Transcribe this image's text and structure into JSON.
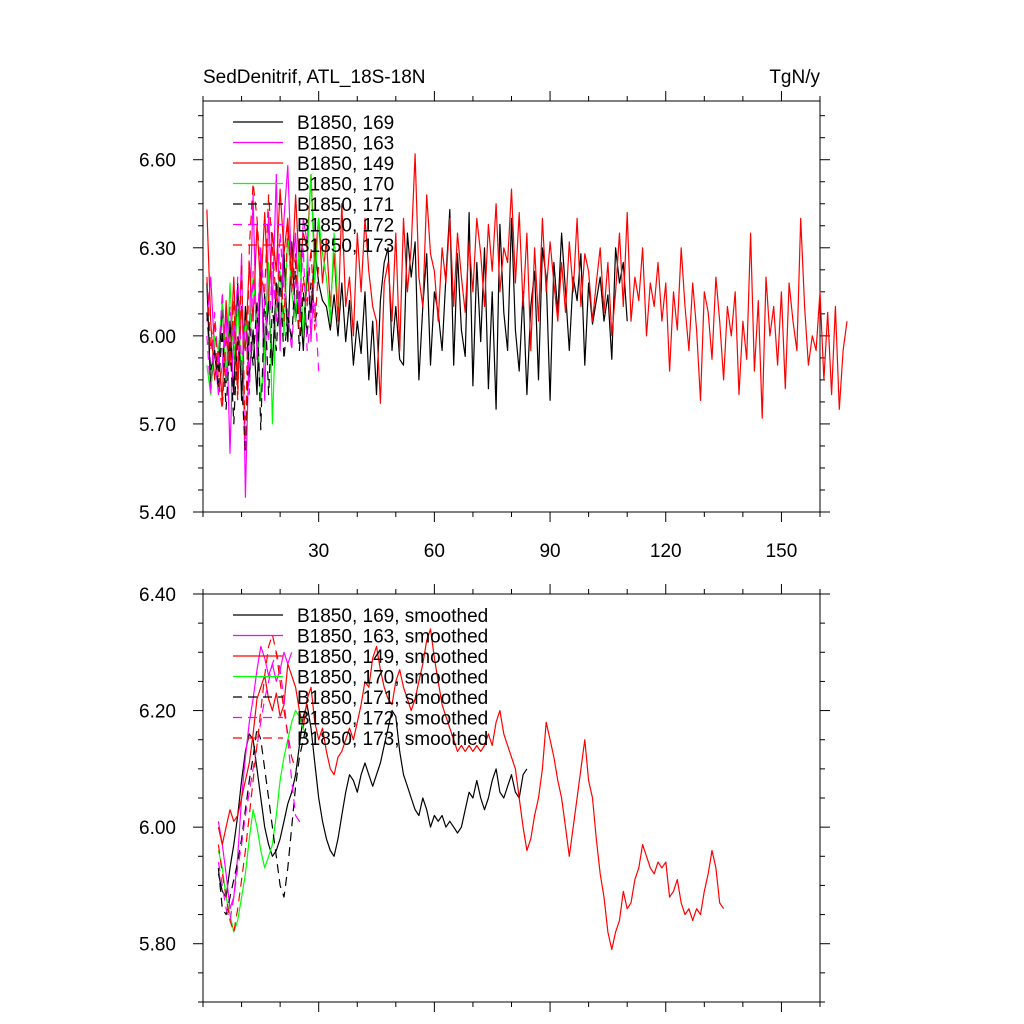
{
  "header": {
    "title": "SedDenitrif, ATL_18S-18N",
    "units": "TgN/y"
  },
  "colors": {
    "black": "#000000",
    "magenta": "#ff00ff",
    "red": "#ff0000",
    "green": "#00ff00"
  },
  "chart_data": [
    {
      "type": "line",
      "title": "SedDenitrif, ATL_18S-18N",
      "ylabel_right": "TgN/y",
      "xlim": [
        0,
        160
      ],
      "ylim": [
        5.4,
        6.8
      ],
      "xticks": [
        30,
        60,
        90,
        120,
        150
      ],
      "xtick_labels": [
        "30",
        "60",
        "90",
        "120",
        "150"
      ],
      "yticks": [
        5.4,
        5.7,
        6.0,
        6.3,
        6.6
      ],
      "ytick_labels": [
        "5.40",
        "5.70",
        "6.00",
        "6.30",
        "6.60"
      ],
      "legend_position": "top-left",
      "series": [
        {
          "name": "B1850, 169",
          "color": "#000000",
          "dash": false,
          "x_start": 1,
          "values": [
            6.18,
            5.82,
            5.95,
            5.88,
            6.1,
            5.84,
            6.05,
            5.8,
            6.18,
            5.78,
            6.1,
            5.86,
            6.02,
            5.8,
            6.22,
            5.95,
            6.12,
            5.9,
            6.18,
            6.0,
            6.28,
            5.98,
            6.32,
            6.05,
            6.15,
            5.95,
            6.22,
            6.08,
            6.3,
            6.18,
            6.12,
            6.1,
            6.02,
            6.14,
            6.0,
            6.18,
            5.98,
            6.12,
            5.9,
            6.05,
            5.94,
            6.15,
            5.85,
            6.05,
            5.8,
            6.12,
            6.25,
            6.3,
            5.95,
            6.1,
            5.92,
            5.9,
            6.35,
            6.2,
            6.32,
            5.85,
            6.1,
            6.28,
            5.9,
            6.15,
            6.08,
            5.95,
            6.2,
            6.43,
            5.9,
            6.28,
            6.02,
            5.93,
            6.42,
            5.83,
            6.25,
            5.98,
            6.3,
            5.82,
            6.15,
            5.75,
            6.38,
            6.08,
            5.95,
            6.4,
            6.02,
            5.88,
            6.15,
            5.8,
            6.1,
            6.22,
            5.85,
            6.3,
            6.2,
            5.78,
            6.25,
            6.08,
            6.35,
            6.15,
            5.95,
            6.2,
            6.12,
            6.28,
            5.9,
            6.18,
            6.04,
            6.12,
            6.2,
            6.05,
            6.14,
            5.92,
            6.3,
            6.18,
            6.25,
            6.05
          ]
        },
        {
          "name": "B1850, 163",
          "color": "#ff00ff",
          "dash": false,
          "x_start": 1,
          "values": [
            6.05,
            6.2,
            5.95,
            5.8,
            5.9,
            6.1,
            5.6,
            6.05,
            5.85,
            6.28,
            5.45,
            6.0,
            6.48,
            5.92,
            6.3,
            5.78,
            6.42,
            6.1,
            6.55,
            5.95,
            6.4,
            6.58,
            6.2,
            6.35,
            6.05,
            6.4,
            6.32,
            5.98,
            6.25,
            6.4
          ]
        },
        {
          "name": "B1850, 149",
          "color": "#ff0000",
          "dash": false,
          "x_start": 1,
          "values": [
            6.43,
            6.05,
            5.85,
            5.95,
            5.78,
            6.12,
            5.9,
            6.2,
            5.82,
            6.1,
            5.95,
            6.25,
            6.05,
            6.38,
            6.15,
            6.42,
            6.12,
            6.35,
            6.22,
            6.5,
            6.28,
            6.4,
            6.18,
            6.48,
            6.22,
            6.35,
            6.3,
            6.55,
            6.25,
            6.4,
            6.18,
            6.33,
            6.1,
            6.28,
            6.05,
            6.45,
            6.1,
            6.2,
            6.0,
            6.35,
            6.15,
            6.4,
            6.22,
            6.1,
            6.05,
            5.77,
            6.18,
            6.25,
            6.05,
            6.35,
            5.95,
            6.4,
            6.15,
            6.3,
            6.62,
            6.2,
            6.1,
            6.48,
            6.28,
            6.22,
            6.05,
            6.3,
            6.18,
            6.4,
            6.1,
            6.35,
            6.2,
            6.08,
            6.32,
            6.15,
            6.4,
            6.28,
            6.1,
            6.38,
            6.22,
            6.45,
            6.15,
            6.3,
            6.25,
            6.5,
            6.18,
            6.42,
            6.1,
            6.35,
            5.95,
            6.3,
            6.05,
            6.4,
            6.15,
            6.32,
            6.18,
            6.05,
            6.25,
            6.08,
            6.32,
            6.15,
            6.4,
            6.1,
            6.28,
            6.22,
            6.05,
            6.18,
            6.3,
            6.08,
            6.25,
            6.0,
            6.15,
            6.35,
            6.1,
            6.42,
            6.05,
            6.2,
            6.12,
            6.3,
            6.0,
            6.18,
            6.1,
            6.25,
            6.05,
            6.18,
            5.88,
            6.15,
            6.02,
            6.3,
            6.1,
            5.95,
            6.18,
            6.02,
            5.78,
            6.15,
            6.08,
            5.92,
            6.2,
            6.05,
            5.85,
            6.1,
            6.0,
            6.15,
            5.8,
            6.05,
            5.92,
            6.35,
            5.88,
            6.12,
            5.72,
            6.2,
            6.0,
            6.1,
            5.9,
            6.15,
            5.82,
            6.18,
            6.05,
            5.95,
            6.4,
            6.1,
            5.9,
            6.0,
            5.95,
            6.15,
            5.85,
            6.08,
            5.8,
            6.1,
            5.75,
            5.95,
            6.05
          ]
        },
        {
          "name": "B1850, 170",
          "color": "#00ff00",
          "dash": false,
          "x_start": 1,
          "values": [
            5.9,
            5.8,
            6.0,
            5.95,
            6.12,
            5.85,
            6.18,
            5.92,
            6.1,
            5.88,
            6.05,
            5.98,
            6.2,
            6.05,
            5.78,
            5.95,
            6.25,
            5.7,
            6.1,
            6.22,
            6.0,
            6.35,
            6.15,
            6.05,
            6.32,
            6.0,
            6.25,
            6.55,
            6.18,
            6.4,
            6.28,
            6.2,
            6.05,
            6.35,
            6.1
          ]
        },
        {
          "name": "B1850, 171",
          "color": "#000000",
          "dash": true,
          "x_start": 1,
          "values": [
            6.08,
            5.88,
            5.95,
            5.82,
            6.02,
            5.75,
            5.98,
            5.7,
            6.0,
            5.85,
            5.6,
            6.05,
            5.9,
            6.12,
            5.68,
            6.15,
            5.8,
            6.1,
            5.95,
            6.2,
            5.92,
            6.08,
            5.98,
            6.25,
            5.95,
            6.15,
            6.0,
            6.18,
            6.05,
            6.1
          ]
        },
        {
          "name": "B1850, 172",
          "color": "#ff00ff",
          "dash": true,
          "x_start": 1,
          "values": [
            6.0,
            5.8,
            6.08,
            5.9,
            6.15,
            5.85,
            6.1,
            5.95,
            6.2,
            5.9,
            6.05,
            5.8,
            6.22,
            6.0,
            6.3,
            6.1,
            5.98,
            6.25,
            6.05,
            6.35,
            6.15,
            6.08,
            5.95,
            6.2,
            6.1,
            6.3,
            5.95,
            6.05,
            6.12,
            5.88
          ]
        },
        {
          "name": "B1850, 173",
          "color": "#ff0000",
          "dash": true,
          "x_start": 1,
          "values": [
            6.2,
            5.95,
            6.05,
            5.85,
            5.75,
            6.0,
            5.9,
            6.12,
            5.78,
            6.25,
            5.62,
            6.3,
            6.52,
            6.4,
            6.2,
            6.15,
            6.48,
            6.3,
            6.12,
            6.25,
            6.05,
            6.38,
            6.15,
            6.28,
            6.0,
            6.2,
            6.1,
            6.3,
            6.02,
            6.25
          ]
        }
      ]
    },
    {
      "type": "line",
      "title": "",
      "xlim": [
        0,
        160
      ],
      "ylim": [
        5.7,
        6.4
      ],
      "xticks": [
        30,
        60,
        90,
        120,
        150
      ],
      "xtick_labels": [],
      "yticks": [
        5.8,
        6.0,
        6.2,
        6.4
      ],
      "ytick_labels": [
        "5.80",
        "6.00",
        "6.20",
        "6.40"
      ],
      "legend_position": "top-left",
      "series": [
        {
          "name": "B1850, 169, smoothed",
          "color": "#000000",
          "dash": false,
          "x_start": 4,
          "values": [
            5.92,
            5.89,
            5.88,
            5.93,
            5.97,
            6.02,
            6.08,
            6.13,
            6.16,
            6.15,
            6.1,
            6.05,
            6.0,
            5.97,
            5.95,
            5.96,
            5.98,
            6.01,
            6.04,
            6.06,
            6.09,
            6.14,
            6.19,
            6.21,
            6.17,
            6.11,
            6.05,
            6.01,
            5.98,
            5.96,
            5.95,
            5.98,
            6.02,
            6.06,
            6.09,
            6.08,
            6.06,
            6.09,
            6.11,
            6.09,
            6.07,
            6.09,
            6.11,
            6.14,
            6.17,
            6.2,
            6.19,
            6.13,
            6.09,
            6.07,
            6.05,
            6.03,
            6.02,
            6.05,
            6.03,
            6.0,
            6.02,
            6.01,
            6.02,
            6.0,
            6.01,
            6.0,
            5.99,
            6.0,
            6.03,
            6.06,
            6.05,
            6.08,
            6.05,
            6.03,
            6.05,
            6.08,
            6.1,
            6.06,
            6.05,
            6.07,
            6.09,
            6.06,
            6.05,
            6.09,
            6.1
          ]
        },
        {
          "name": "B1850, 163, smoothed",
          "color": "#ff00ff",
          "dash": false,
          "x_start": 4,
          "values": [
            6.01,
            5.97,
            5.92,
            5.86,
            5.88,
            5.95,
            6.05,
            6.12,
            6.18,
            6.22,
            6.27,
            6.31,
            6.29,
            6.26,
            6.28,
            6.25,
            6.27,
            6.3,
            6.28,
            6.3
          ]
        },
        {
          "name": "B1850, 149, smoothed",
          "color": "#ff0000",
          "dash": false,
          "x_start": 4,
          "values": [
            6.0,
            5.97,
            6.0,
            6.03,
            6.01,
            6.02,
            6.05,
            6.08,
            6.11,
            6.16,
            6.22,
            6.24,
            6.26,
            6.22,
            6.2,
            6.23,
            6.19,
            6.21,
            6.28,
            6.26,
            6.24,
            6.2,
            6.17,
            6.22,
            6.24,
            6.18,
            6.15,
            6.17,
            6.13,
            6.1,
            6.09,
            6.12,
            6.13,
            6.15,
            6.17,
            6.15,
            6.18,
            6.21,
            6.25,
            6.24,
            6.29,
            6.31,
            6.27,
            6.24,
            6.22,
            6.21,
            6.25,
            6.27,
            6.24,
            6.22,
            6.2,
            6.22,
            6.25,
            6.28,
            6.32,
            6.34,
            6.29,
            6.25,
            6.21,
            6.19,
            6.17,
            6.15,
            6.13,
            6.14,
            6.13,
            6.14,
            6.13,
            6.14,
            6.13,
            6.14,
            6.16,
            6.14,
            6.18,
            6.2,
            6.16,
            6.14,
            6.12,
            6.1,
            6.05,
            6.0,
            5.96,
            5.98,
            6.02,
            6.05,
            6.1,
            6.18,
            6.15,
            6.12,
            6.08,
            6.05,
            6.0,
            5.95,
            6.0,
            6.05,
            6.1,
            6.15,
            6.08,
            6.05,
            5.98,
            5.92,
            5.88,
            5.82,
            5.79,
            5.82,
            5.84,
            5.89,
            5.86,
            5.87,
            5.91,
            5.93,
            5.97,
            5.95,
            5.93,
            5.92,
            5.94,
            5.93,
            5.94,
            5.88,
            5.89,
            5.91,
            5.87,
            5.85,
            5.86,
            5.84,
            5.86,
            5.85,
            5.89,
            5.92,
            5.96,
            5.93,
            5.87,
            5.86
          ]
        },
        {
          "name": "B1850, 170, smoothed",
          "color": "#00ff00",
          "dash": false,
          "x_start": 4,
          "values": [
            5.96,
            5.93,
            5.88,
            5.85,
            5.82,
            5.84,
            5.88,
            5.92,
            5.98,
            6.03,
            6.0,
            5.96,
            5.93,
            5.95,
            5.97,
            6.02,
            6.08,
            6.12,
            6.15,
            6.18,
            6.2,
            6.19,
            6.17,
            6.15
          ]
        },
        {
          "name": "B1850, 171, smoothed",
          "color": "#000000",
          "dash": true,
          "x_start": 4,
          "values": [
            5.93,
            5.86,
            5.85,
            5.88,
            5.91,
            5.94,
            5.98,
            6.03,
            6.08,
            6.12,
            6.17,
            6.15,
            6.1,
            6.05,
            6.0,
            5.95,
            5.9,
            5.88,
            5.93,
            6.0,
            6.07,
            6.12,
            6.15,
            6.18
          ]
        },
        {
          "name": "B1850, 172, smoothed",
          "color": "#ff00ff",
          "dash": true,
          "x_start": 4,
          "values": [
            5.94,
            5.9,
            5.86,
            5.84,
            5.88,
            5.93,
            5.97,
            6.02,
            6.06,
            6.1,
            6.14,
            6.18,
            6.22,
            6.25,
            6.28,
            6.3,
            6.27,
            6.22,
            6.15,
            6.08,
            6.02,
            6.01,
            6.0
          ]
        },
        {
          "name": "B1850, 173, smoothed",
          "color": "#ff0000",
          "dash": true,
          "x_start": 4,
          "values": [
            5.97,
            5.92,
            5.88,
            5.84,
            5.82,
            5.86,
            5.91,
            5.96,
            6.02,
            6.08,
            6.14,
            6.2,
            6.26,
            6.31,
            6.33,
            6.3,
            6.25,
            6.2,
            6.16,
            6.12,
            6.1
          ]
        }
      ]
    }
  ]
}
